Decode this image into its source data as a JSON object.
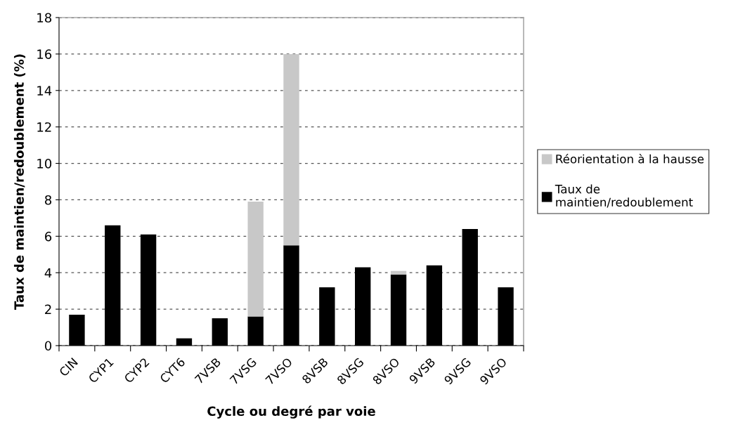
{
  "chart_data": {
    "type": "bar",
    "stacked": true,
    "xlabel": "Cycle ou degré par voie",
    "ylabel": "Taux de maintien/redoublement (%)",
    "categories": [
      "CIN",
      "CYP1",
      "CYP2",
      "CYT6",
      "7VSB",
      "7VSG",
      "7VSO",
      "8VSB",
      "8VSG",
      "8VSO",
      "9VSB",
      "9VSG",
      "9VSO"
    ],
    "series": [
      {
        "name": "Taux de\nmaintien/redoublement",
        "color": "#000000",
        "values": [
          1.7,
          6.6,
          6.1,
          0.4,
          1.5,
          1.6,
          5.5,
          3.2,
          4.3,
          3.9,
          4.4,
          6.4,
          3.2
        ]
      },
      {
        "name": "Réorientation à la hausse",
        "color": "#c8c8c8",
        "values": [
          null,
          null,
          null,
          null,
          null,
          6.3,
          10.5,
          null,
          null,
          0.2,
          null,
          null,
          null
        ]
      }
    ],
    "ylim": [
      0,
      18
    ],
    "yticks": [
      0,
      2,
      4,
      6,
      8,
      10,
      12,
      14,
      16,
      18
    ],
    "grid": "y",
    "legend": "right"
  }
}
